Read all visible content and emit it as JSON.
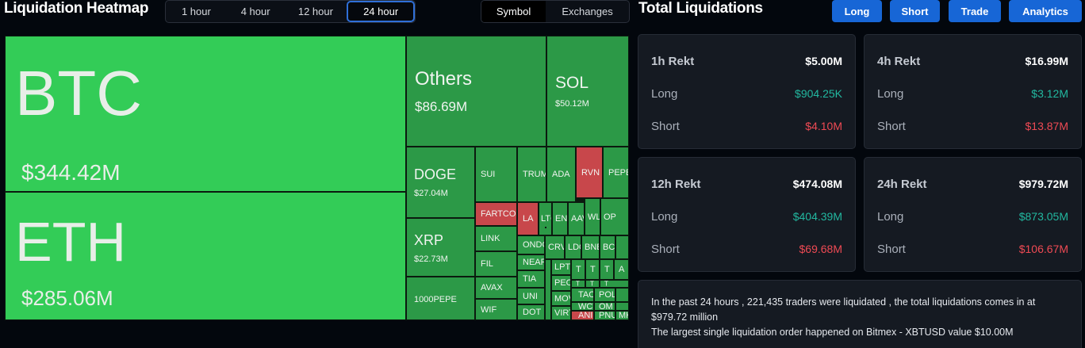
{
  "heatmap": {
    "title": "Liquidation Heatmap",
    "time_tabs": [
      "1 hour",
      "4 hour",
      "12 hour",
      "24 hour"
    ],
    "active_tab": "24 hour",
    "view_tabs": [
      "Symbol",
      "Exchanges"
    ],
    "tiles": {
      "btc": {
        "name": "BTC",
        "value": "$344.42M"
      },
      "eth": {
        "name": "ETH",
        "value": "$285.06M"
      },
      "others": {
        "name": "Others",
        "value": "$86.69M"
      },
      "sol": {
        "name": "SOL",
        "value": "$50.12M"
      },
      "doge": {
        "name": "DOGE",
        "value": "$27.04M"
      },
      "xrp": {
        "name": "XRP",
        "value": "$22.73M"
      },
      "pepe": {
        "name": "1000PEPE"
      },
      "small": [
        "SUI",
        "TRUMP",
        "ADA",
        "RVN",
        "PEPE",
        "FARTCOIN",
        "LA",
        "LTC",
        "ENA",
        "AAVE",
        "WLD",
        "OP",
        "LINK",
        "ONDO",
        "CRV",
        "LDO",
        "BNB",
        "BCH",
        "FIL",
        "NEAR",
        "LPT",
        "T",
        "T",
        "T",
        "A",
        "AVAX",
        "TIA",
        "PEOPLE",
        "T",
        "T",
        "T",
        "UNI",
        "MOVE",
        "TAO",
        "POL",
        "WIF",
        "DOT",
        "VIRTUAL",
        "WCT",
        "OM",
        "ANIME",
        "PNUT",
        "MKR"
      ]
    }
  },
  "total": {
    "title": "Total Liquidations",
    "buttons": [
      "Long",
      "Short",
      "Trade",
      "Analytics"
    ],
    "cards": [
      {
        "label": "1h Rekt",
        "total": "$5.00M",
        "long_label": "Long",
        "long": "$904.25K",
        "short_label": "Short",
        "short": "$4.10M"
      },
      {
        "label": "4h Rekt",
        "total": "$16.99M",
        "long_label": "Long",
        "long": "$3.12M",
        "short_label": "Short",
        "short": "$13.87M"
      },
      {
        "label": "12h Rekt",
        "total": "$474.08M",
        "long_label": "Long",
        "long": "$404.39M",
        "short_label": "Short",
        "short": "$69.68M"
      },
      {
        "label": "24h Rekt",
        "total": "$979.72M",
        "long_label": "Long",
        "long": "$873.05M",
        "short_label": "Short",
        "short": "$106.67M"
      }
    ],
    "summary_line1": "In the past 24 hours , 221,435 traders were liquidated , the total liquidations comes in at $979.72 million",
    "summary_line2": "The largest single liquidation order happened on Bitmex - XBTUSD value $10.00M"
  },
  "colors": {
    "green_bright": "#33cc57",
    "green": "#2fa04d",
    "red": "#c8474b",
    "accent": "#1766d6",
    "positive": "#22b8a0",
    "negative": "#ef4a54"
  }
}
